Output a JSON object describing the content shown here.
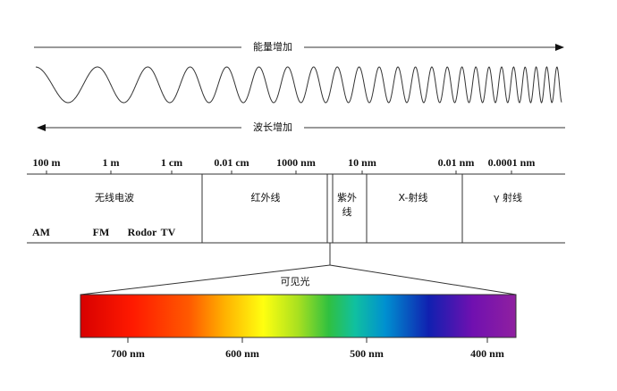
{
  "arrows": {
    "energy": "能量增加",
    "wavelength": "波长增加"
  },
  "scale": [
    "100 m",
    "1 m",
    "1 cm",
    "0.01 cm",
    "1000 nm",
    "10 nm",
    "0.01 nm",
    "0.0001 nm"
  ],
  "regions": [
    {
      "lines": [
        "无线电波"
      ]
    },
    {
      "lines": [
        "红外线"
      ]
    },
    {
      "lines": [
        "紫外",
        "线"
      ]
    },
    {
      "lines": [
        "X-射线"
      ]
    },
    {
      "lines": [
        "γ 射线"
      ]
    }
  ],
  "radio_bands": [
    "AM",
    "FM",
    "Rodor",
    "TV"
  ],
  "visible": {
    "title": "可见光",
    "ticks": [
      "700 nm",
      "600 nm",
      "500 nm",
      "400 nm"
    ]
  }
}
